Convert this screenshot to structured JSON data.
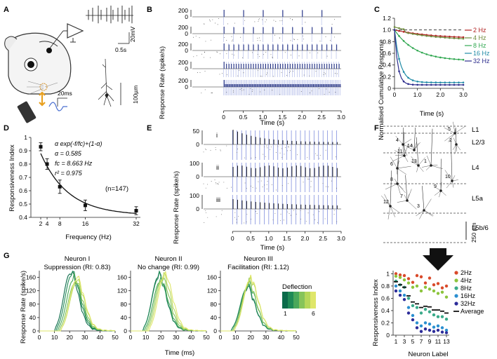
{
  "panel_letters": [
    "A",
    "B",
    "C",
    "D",
    "E",
    "F",
    "G"
  ],
  "panel_a": {
    "scale_voltage": "20mV",
    "scale_time": "0.5s",
    "scale_stim": "20ms",
    "scale_length": "100µm"
  },
  "chart_data": [
    {
      "id": "B",
      "type": "raster+psth",
      "title": "",
      "xlabel": "Time (s)",
      "ylabel": "Response Rate (spike/s)",
      "xlim": [
        -0.8,
        3.0
      ],
      "x_ticks": [
        "0",
        "0.5",
        "1.0",
        "1.5",
        "2.0",
        "2.5",
        "3.0"
      ],
      "y_ticks": [
        "200",
        "0"
      ],
      "row_freqs_hz": [
        2,
        4,
        8,
        16,
        32
      ],
      "duration_s": 3
    },
    {
      "id": "C",
      "type": "line",
      "xlabel": "Time (s)",
      "ylabel": "Normalised Cumulative Response",
      "xlim": [
        0,
        3.0
      ],
      "ylim": [
        0,
        1.2
      ],
      "x_ticks": [
        "0",
        "1.0",
        "2.0",
        "3.0"
      ],
      "y_ticks": [
        "0",
        "0.2",
        "0.4",
        "0.6",
        "0.8",
        "1.0",
        "1.2"
      ],
      "series": [
        {
          "name": "2 Hz",
          "color": "#b22222",
          "end": 0.85
        },
        {
          "name": "4 Hz",
          "color": "#6e8b3d",
          "end": 0.82
        },
        {
          "name": "8 Hz",
          "color": "#32a852",
          "end": 0.47
        },
        {
          "name": "16 Hz",
          "color": "#1f8aa6",
          "end": 0.1
        },
        {
          "name": "32 Hz",
          "color": "#2c2c8c",
          "end": 0.06
        }
      ]
    },
    {
      "id": "D",
      "type": "scatter+fit",
      "xlabel": "Frequency (Hz)",
      "ylabel": "Responsiveness Index",
      "xlim": [
        0,
        34
      ],
      "ylim": [
        0.4,
        1.0
      ],
      "x_ticks": [
        "2",
        "4",
        "8",
        "16",
        "32"
      ],
      "y_ticks": [
        "0.4",
        "0.5",
        "0.6",
        "0.7",
        "0.8",
        "0.9",
        "1"
      ],
      "points": [
        {
          "x": 2,
          "y": 0.93,
          "err": 0.03
        },
        {
          "x": 4,
          "y": 0.8,
          "err": 0.04
        },
        {
          "x": 8,
          "y": 0.63,
          "err": 0.05
        },
        {
          "x": 16,
          "y": 0.49,
          "err": 0.04
        },
        {
          "x": 32,
          "y": 0.45,
          "err": 0.03
        }
      ],
      "fit_alpha": 0.585,
      "fit_fc": 8.663,
      "equation": "α exp(-f/fc)+(1-α)",
      "alpha_text": "α = 0.585",
      "fc_text": "fc = 8.663 Hz",
      "r2_text": "r² = 0.975",
      "n_text": "(n=147)"
    },
    {
      "id": "E",
      "type": "raster+psth",
      "xlabel": "Time (s)",
      "ylabel": "Response Rate (spike/s)",
      "xlim": [
        -0.8,
        3.0
      ],
      "x_ticks": [
        "0",
        "0.5",
        "1.0",
        "1.5",
        "2.0",
        "2.5",
        "3.0"
      ],
      "rows": [
        {
          "label": "i",
          "ytop": "50",
          "ybot": "0"
        },
        {
          "label": "ii",
          "ytop": "100",
          "ybot": "0"
        },
        {
          "label": "iii",
          "ytop": "100",
          "ybot": "0"
        }
      ]
    },
    {
      "id": "F-bottom",
      "type": "scatter",
      "xlabel": "Neuron Label",
      "ylabel": "Responsiveness Index",
      "xlim": [
        0.5,
        13.5
      ],
      "ylim": [
        0,
        1.05
      ],
      "x_ticks": [
        "1",
        "3",
        "5",
        "7",
        "9",
        "11",
        "13"
      ],
      "y_ticks": [
        "0",
        "0.2",
        "0.4",
        "0.6",
        "0.8",
        "1"
      ],
      "series": [
        {
          "name": "2Hz",
          "color": "#d94a2a",
          "values": [
            1.0,
            0.98,
            0.97,
            0.92,
            0.86,
            0.97,
            0.95,
            0.85,
            0.93,
            0.82,
            0.84,
            0.77,
            0.8
          ]
        },
        {
          "name": "4Hz",
          "color": "#8cc43c",
          "values": [
            0.96,
            0.94,
            0.9,
            0.85,
            0.78,
            0.8,
            0.72,
            0.78,
            0.75,
            0.72,
            0.68,
            0.7,
            0.62
          ]
        },
        {
          "name": "8Hz",
          "color": "#3aaa8a",
          "values": [
            0.88,
            0.82,
            0.78,
            0.6,
            0.48,
            0.45,
            0.36,
            0.42,
            0.38,
            0.33,
            0.3,
            0.3,
            0.26
          ]
        },
        {
          "name": "16Hz",
          "color": "#2a8fd0",
          "values": [
            0.8,
            0.72,
            0.65,
            0.45,
            0.32,
            0.2,
            0.15,
            0.2,
            0.18,
            0.13,
            0.15,
            0.12,
            0.08
          ]
        },
        {
          "name": "32Hz",
          "color": "#2c2c99",
          "values": [
            0.72,
            0.65,
            0.58,
            0.36,
            0.25,
            0.12,
            0.06,
            0.1,
            0.08,
            0.06,
            0.08,
            0.05,
            0.04
          ]
        }
      ],
      "average": [
        0.87,
        0.82,
        0.78,
        0.64,
        0.54,
        0.51,
        0.45,
        0.47,
        0.46,
        0.41,
        0.41,
        0.39,
        0.36
      ],
      "average_label": "Average"
    },
    {
      "id": "G",
      "type": "line",
      "xlabel": "Time (ms)",
      "ylabel": "Response Rate (spike/s)",
      "xlim": [
        0,
        50
      ],
      "ylim": [
        0,
        180
      ],
      "x_ticks": [
        "0",
        "10",
        "20",
        "30",
        "40",
        "50"
      ],
      "y_ticks": [
        "0",
        "40",
        "80",
        "120",
        "160"
      ],
      "legend_title": "Deflection",
      "legend_min": "1",
      "legend_max": "6",
      "neurons": [
        {
          "name": "Neuron I",
          "subtitle": "Suppression (RI: 0.83)",
          "peaks": [
            170,
            165,
            150,
            140,
            140,
            150
          ],
          "peak_t": [
            20,
            21,
            22,
            23,
            24,
            24
          ]
        },
        {
          "name": "Neuron II",
          "subtitle": "No change (RI: 0.99)",
          "peaks": [
            160,
            155,
            145,
            150,
            155,
            160
          ],
          "peak_t": [
            18,
            18,
            19,
            20,
            21,
            22
          ]
        },
        {
          "name": "Neuron III",
          "subtitle": "Facilitation (RI: 1.12)",
          "peaks": [
            120,
            125,
            130,
            135,
            145,
            150
          ],
          "peak_t": [
            17,
            17,
            18,
            18,
            19,
            19
          ]
        }
      ]
    }
  ],
  "panel_f": {
    "layers": [
      "L1",
      "L2/3",
      "L4",
      "L5a",
      "L5b/6"
    ],
    "scale": "250 µm",
    "neuron_ids": [
      "1",
      "2",
      "3",
      "4",
      "5",
      "6",
      "7",
      "8",
      "9",
      "10",
      "11",
      "12",
      "13",
      "14"
    ]
  }
}
